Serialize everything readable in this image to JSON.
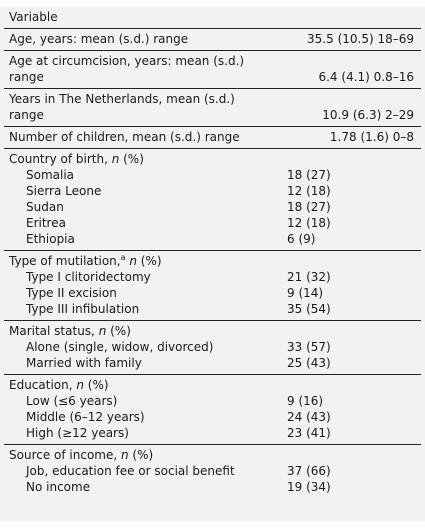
{
  "table": {
    "header": "Variable",
    "rows": [
      {
        "label": "Age, years: mean (s.d.) range",
        "value": "35.5 (10.5) 18–69"
      },
      {
        "label_line1": "Age at circumcision, years: mean (s.d.)",
        "label_line2": "range",
        "value": "6.4 (4.1) 0.8–16"
      },
      {
        "label_line1": "Years in The Netherlands, mean (s.d.)",
        "label_line2": "range",
        "value": "10.9 (6.3) 2–29"
      },
      {
        "label": "Number of children, mean (s.d.) range",
        "value": "1.78 (1.6) 0–8"
      }
    ],
    "country": {
      "heading": "Country of birth, ",
      "heading_n": "n",
      "heading_pct": " (%)",
      "items": [
        {
          "label": "Somalia",
          "value": "18 (27)"
        },
        {
          "label": "Sierra Leone",
          "value": "12 (18)"
        },
        {
          "label": "Sudan",
          "value": "18 (27)"
        },
        {
          "label": "Eritrea",
          "value": "12 (18)"
        },
        {
          "label": "Ethiopia",
          "value": "6 (9)"
        }
      ]
    },
    "mutilation": {
      "heading": "Type of mutilation,",
      "footnote": "a",
      "heading_n": "n",
      "heading_pct": " (%)",
      "items": [
        {
          "label": "Type I clitoridectomy",
          "value": "21 (32)"
        },
        {
          "label": "Type II excision",
          "value": "9 (14)"
        },
        {
          "label": "Type III infibulation",
          "value": "35 (54)"
        }
      ]
    },
    "marital": {
      "heading": "Marital status, ",
      "heading_n": "n",
      "heading_pct": " (%)",
      "items": [
        {
          "label": "Alone (single, widow, divorced)",
          "value": "33 (57)"
        },
        {
          "label": "Married with family",
          "value": "25 (43)"
        }
      ]
    },
    "education": {
      "heading": "Education, ",
      "heading_n": "n",
      "heading_pct": " (%)",
      "items": [
        {
          "label": "Low (≤6 years)",
          "value": "9 (16)"
        },
        {
          "label": "Middle (6–12 years)",
          "value": "24 (43)"
        },
        {
          "label": "High (≥12 years)",
          "value": "23 (41)"
        }
      ]
    },
    "income": {
      "heading": "Source of income, ",
      "heading_n": "n",
      "heading_pct": " (%)",
      "items": [
        {
          "label": "Job, education fee or social benefit",
          "value": "37 (66)"
        },
        {
          "label": "No income",
          "value": "19 (34)"
        }
      ]
    }
  }
}
